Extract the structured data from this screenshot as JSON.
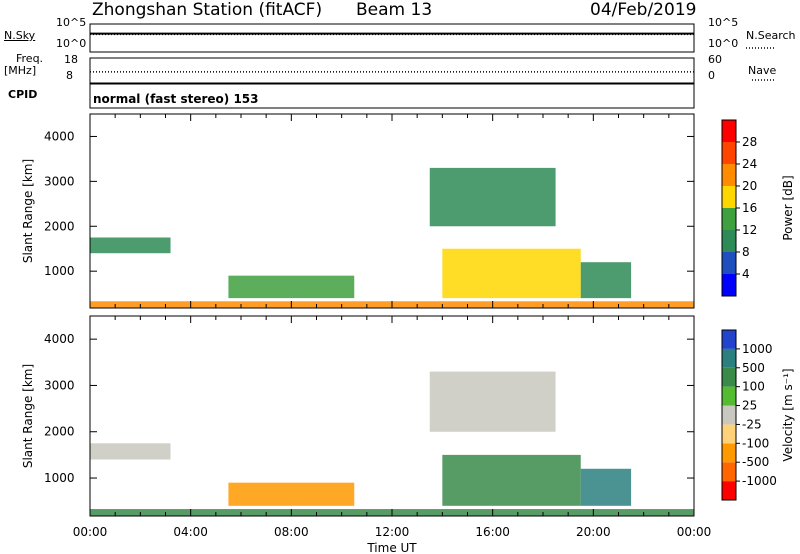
{
  "header": {
    "station": "Zhongshan Station (fitACF)",
    "beam": "Beam 13",
    "date": "04/Feb/2019"
  },
  "noise_panel": {
    "left_label": "N.Sky",
    "right_label": "N.Search",
    "left_ticks": [
      "10^5",
      "10^0"
    ],
    "right_ticks": [
      "10^5",
      "10^0"
    ]
  },
  "freq_panel": {
    "left_label_1": "Freq.",
    "left_label_2": "[MHz]",
    "left_ticks": [
      "18",
      "8"
    ],
    "right_label": "Nave",
    "right_ticks": [
      "60",
      "0"
    ]
  },
  "cpid_panel": {
    "label": "CPID",
    "text": "normal (fast stereo) 153"
  },
  "power_panel": {
    "ylabel": "Slant Range [km]",
    "yticks": [
      "4000",
      "3000",
      "2000",
      "1000"
    ],
    "colorbar_label": "Power [dB]",
    "colorbar_ticks": [
      "28",
      "24",
      "20",
      "16",
      "12",
      "8",
      "4"
    ],
    "colors": [
      "#0000ff",
      "#1f4fbf",
      "#2e8b57",
      "#3fa03f",
      "#ffd700",
      "#ff8c00",
      "#ff4500",
      "#ff0000"
    ]
  },
  "velocity_panel": {
    "ylabel": "Slant Range [km]",
    "yticks": [
      "4000",
      "3000",
      "2000",
      "1000"
    ],
    "colorbar_label": "Velocity [m s⁻¹]",
    "colorbar_ticks": [
      "1000",
      "500",
      "100",
      "25",
      "-25",
      "-100",
      "-500",
      "-1000"
    ],
    "colors": [
      "#2244cc",
      "#2c7f7f",
      "#3a8a4a",
      "#55bb33",
      "#c8c8c0",
      "#ffd27a",
      "#ff9900",
      "#ff6600",
      "#ff0000"
    ]
  },
  "x_axis": {
    "ticks": [
      "00:00",
      "04:00",
      "08:00",
      "12:00",
      "16:00",
      "20:00",
      "00:00"
    ],
    "label": "Time UT"
  },
  "chart_data": {
    "type": "heatmap",
    "title": "Zhongshan Station (fitACF) Beam 13 04/Feb/2019",
    "xlabel": "Time UT",
    "ylabel": "Slant Range [km]",
    "xlim": [
      0,
      24
    ],
    "ylim": [
      180,
      4500
    ],
    "x_ticks": [
      "00:00",
      "04:00",
      "08:00",
      "12:00",
      "16:00",
      "20:00",
      "00:00"
    ],
    "y_ticks": [
      1000,
      2000,
      3000,
      4000
    ],
    "power_colorbar": {
      "label": "Power [dB]",
      "range": [
        0,
        30
      ],
      "ticks": [
        4,
        8,
        12,
        16,
        20,
        24,
        28
      ]
    },
    "velocity_colorbar": {
      "label": "Velocity [m s⁻¹]",
      "ticks": [
        1000,
        500,
        100,
        25,
        -25,
        -100,
        -500,
        -1000
      ]
    },
    "scatter_regions": [
      {
        "t0": 0.0,
        "t1": 24.0,
        "r0": 180,
        "r1": 330,
        "power_db": 20,
        "velocity": 120
      },
      {
        "t0": 0.0,
        "t1": 3.2,
        "r0": 1400,
        "r1": 1750,
        "power_db": 8,
        "velocity": 20
      },
      {
        "t0": 5.5,
        "t1": 10.5,
        "r0": 400,
        "r1": 900,
        "power_db": 14,
        "velocity": -200
      },
      {
        "t0": 13.5,
        "t1": 18.5,
        "r0": 2000,
        "r1": 3300,
        "power_db": 10,
        "velocity": 20
      },
      {
        "t0": 14.0,
        "t1": 19.5,
        "r0": 400,
        "r1": 1500,
        "power_db": 18,
        "velocity": 300
      },
      {
        "t0": 19.5,
        "t1": 21.5,
        "r0": 400,
        "r1": 1200,
        "power_db": 8,
        "velocity": 700
      }
    ],
    "noise_sky": 100,
    "noise_search": 100,
    "frequency_mhz": 10.5,
    "nave": 28
  }
}
